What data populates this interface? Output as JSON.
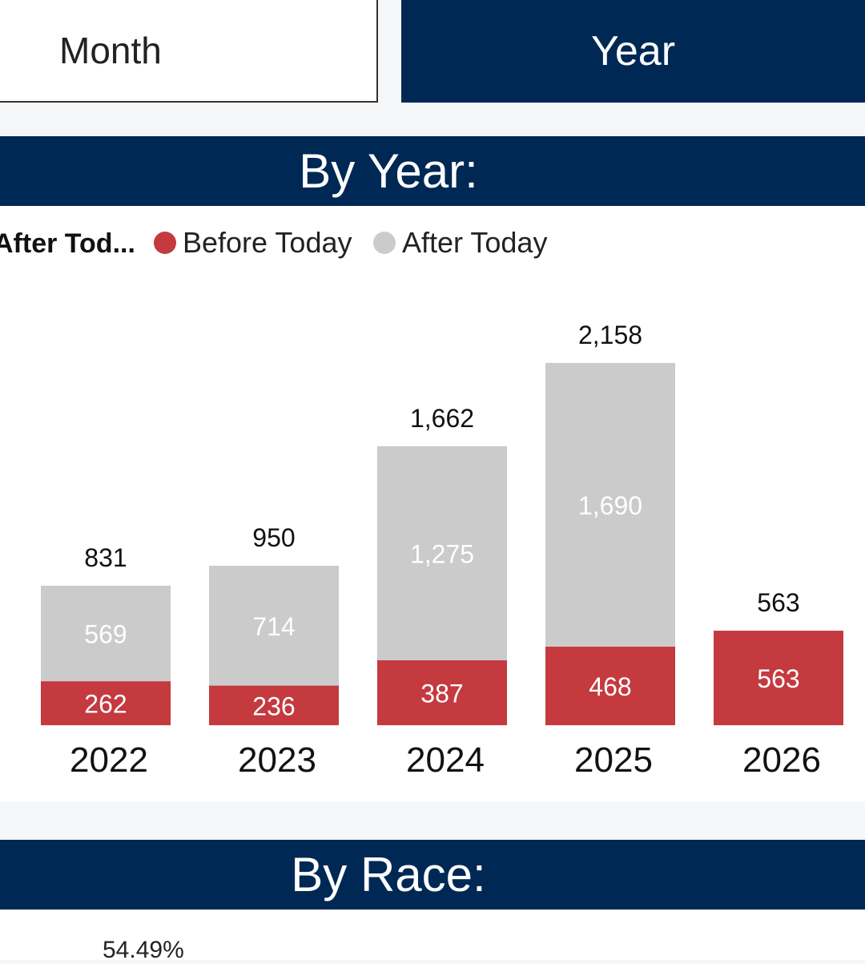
{
  "toggles": {
    "month_label": "Month",
    "year_label": "Year"
  },
  "sections": {
    "by_year_title": "By Year:",
    "by_race_title": "By Race:"
  },
  "colors": {
    "navy": "#002855",
    "before": "#c43a3f",
    "after": "#cbcbcb"
  },
  "chart_data": {
    "type": "bar",
    "stacked": true,
    "legend": {
      "title": "After Tod...",
      "placement": "top-left",
      "entries": [
        "Before Today",
        "After Today"
      ]
    },
    "categories": [
      "2022",
      "2023",
      "2024",
      "2025",
      "2026"
    ],
    "series": [
      {
        "name": "Before Today",
        "values": [
          262,
          236,
          387,
          468,
          563
        ]
      },
      {
        "name": "After Today",
        "values": [
          569,
          714,
          1275,
          1690,
          0
        ]
      }
    ],
    "totals": [
      831,
      950,
      1662,
      2158,
      563
    ],
    "total_labels": [
      "831",
      "950",
      "1,662",
      "2,158",
      "563"
    ],
    "value_labels": {
      "Before Today": [
        "262",
        "236",
        "387",
        "468",
        "563"
      ],
      "After Today": [
        "569",
        "714",
        "1,275",
        "1,690",
        ""
      ]
    },
    "ylim": [
      0,
      2700
    ],
    "grid": false
  },
  "race": {
    "first_pct": "54.49%"
  }
}
